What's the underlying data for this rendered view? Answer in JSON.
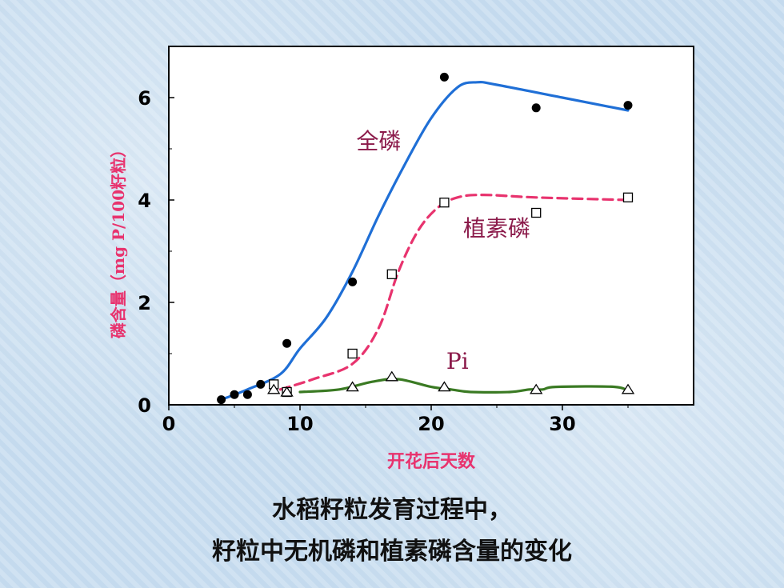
{
  "chart_data": {
    "type": "line",
    "xlabel": "开花后天数",
    "ylabel": "磷含量（mg P/100籽粒）",
    "xlim": [
      0,
      40
    ],
    "ylim": [
      0,
      7
    ],
    "x_ticks": [
      0,
      10,
      20,
      30
    ],
    "y_ticks": [
      0,
      2,
      4,
      6
    ],
    "series": [
      {
        "name": "全磷",
        "color": "#1f6fd6",
        "marker": "filled-circle",
        "line_style": "solid",
        "points": [
          [
            4,
            0.1
          ],
          [
            5,
            0.2
          ],
          [
            6,
            0.2
          ],
          [
            7,
            0.4
          ],
          [
            9,
            1.2
          ],
          [
            14,
            2.4
          ],
          [
            21,
            6.4
          ],
          [
            28,
            5.8
          ],
          [
            35,
            5.85
          ]
        ],
        "curve": [
          [
            4,
            0.1
          ],
          [
            6,
            0.3
          ],
          [
            8.5,
            0.6
          ],
          [
            10,
            1.1
          ],
          [
            12,
            1.7
          ],
          [
            14,
            2.6
          ],
          [
            16,
            3.7
          ],
          [
            18,
            4.7
          ],
          [
            20,
            5.6
          ],
          [
            22,
            6.2
          ],
          [
            23.5,
            6.3
          ],
          [
            25,
            6.25
          ],
          [
            30,
            6.0
          ],
          [
            35,
            5.75
          ]
        ]
      },
      {
        "name": "植素磷",
        "color": "#e8336e",
        "marker": "open-square",
        "line_style": "dashed",
        "points": [
          [
            8,
            0.4
          ],
          [
            9,
            0.25
          ],
          [
            14,
            1.0
          ],
          [
            17,
            2.55
          ],
          [
            21,
            3.95
          ],
          [
            28,
            3.75
          ],
          [
            35,
            4.05
          ]
        ],
        "curve": [
          [
            8.5,
            0.3
          ],
          [
            11,
            0.5
          ],
          [
            14,
            0.8
          ],
          [
            16,
            1.5
          ],
          [
            17.5,
            2.6
          ],
          [
            19,
            3.4
          ],
          [
            20.5,
            3.85
          ],
          [
            22,
            4.05
          ],
          [
            24,
            4.1
          ],
          [
            28,
            4.05
          ],
          [
            35,
            4.0
          ]
        ]
      },
      {
        "name": "Pi",
        "color": "#3a7a23",
        "marker": "open-triangle",
        "line_style": "solid",
        "points": [
          [
            8,
            0.3
          ],
          [
            9,
            0.25
          ],
          [
            14,
            0.35
          ],
          [
            17,
            0.55
          ],
          [
            21,
            0.35
          ],
          [
            28,
            0.3
          ],
          [
            35,
            0.3
          ]
        ],
        "curve": [
          [
            10,
            0.25
          ],
          [
            13,
            0.3
          ],
          [
            15.5,
            0.45
          ],
          [
            17.5,
            0.5
          ],
          [
            20,
            0.35
          ],
          [
            21.5,
            0.3
          ],
          [
            23,
            0.25
          ],
          [
            26,
            0.25
          ],
          [
            27.5,
            0.3
          ],
          [
            28.5,
            0.3
          ],
          [
            29.5,
            0.35
          ],
          [
            34,
            0.35
          ],
          [
            35,
            0.25
          ]
        ]
      }
    ],
    "annotations": [
      {
        "text": "全磷",
        "x": 16,
        "y": 5.0,
        "color": "#8b1a4a"
      },
      {
        "text": "植素磷",
        "x": 25,
        "y": 3.3,
        "color": "#8b1a4a"
      },
      {
        "text": "Pi",
        "x": 22,
        "y": 0.7,
        "color": "#8b1a4a"
      }
    ],
    "grid": false,
    "legend": "none"
  },
  "caption": {
    "line1": "水稻籽粒发育过程中，",
    "line2": "籽粒中无机磷和植素磷含量的变化"
  }
}
